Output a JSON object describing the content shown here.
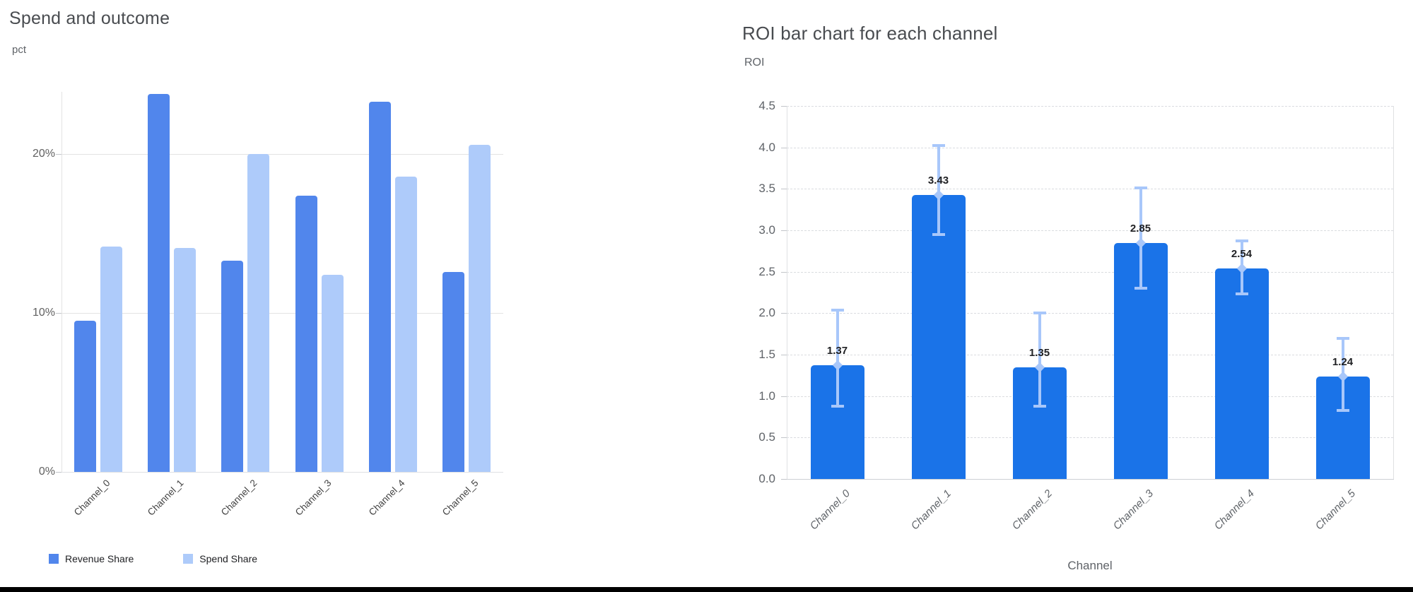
{
  "page": {
    "background": "#ffffff",
    "bottom_border_color": "#000000"
  },
  "chart_data": [
    {
      "type": "bar",
      "title": "Spend and outcome",
      "unit_label": "pct",
      "xlabel": "",
      "ylabel": "pct",
      "categories": [
        "Channel_0",
        "Channel_1",
        "Channel_2",
        "Channel_3",
        "Channel_4",
        "Channel_5"
      ],
      "series": [
        {
          "name": "Revenue Share",
          "color": "#5186EC",
          "values": [
            9.5,
            23.8,
            13.3,
            17.4,
            23.3,
            12.6
          ]
        },
        {
          "name": "Spend Share",
          "color": "#AECBFA",
          "values": [
            14.2,
            14.1,
            20.0,
            12.4,
            18.6,
            20.6
          ]
        }
      ],
      "y_ticks": [
        {
          "value": 0,
          "label": "0%"
        },
        {
          "value": 10,
          "label": "10%"
        },
        {
          "value": 20,
          "label": "20%"
        }
      ],
      "ylim": [
        0,
        23.93
      ],
      "grid": "solid",
      "legend_position": "bottom"
    },
    {
      "type": "bar",
      "title": "ROI bar chart for each channel",
      "unit_label": "ROI",
      "xlabel": "Channel",
      "ylabel": "ROI",
      "categories": [
        "Channel_0",
        "Channel_1",
        "Channel_2",
        "Channel_3",
        "Channel_4",
        "Channel_5"
      ],
      "series": [
        {
          "name": "ROI",
          "color": "#1A73E8",
          "values": [
            1.37,
            3.43,
            1.35,
            2.85,
            2.54,
            1.24
          ]
        }
      ],
      "value_labels": [
        "1.37",
        "3.43",
        "1.35",
        "2.85",
        "2.54",
        "1.24"
      ],
      "error_bars": {
        "color": "#A8C7FA",
        "low": [
          0.88,
          2.95,
          0.88,
          2.3,
          2.23,
          0.83
        ],
        "high": [
          2.04,
          4.02,
          2.0,
          3.51,
          2.87,
          1.7
        ]
      },
      "y_ticks": [
        {
          "value": 0.0,
          "label": "0.0"
        },
        {
          "value": 0.5,
          "label": "0.5"
        },
        {
          "value": 1.0,
          "label": "1.0"
        },
        {
          "value": 1.5,
          "label": "1.5"
        },
        {
          "value": 2.0,
          "label": "2.0"
        },
        {
          "value": 2.5,
          "label": "2.5"
        },
        {
          "value": 3.0,
          "label": "3.0"
        },
        {
          "value": 3.5,
          "label": "3.5"
        },
        {
          "value": 4.0,
          "label": "4.0"
        },
        {
          "value": 4.5,
          "label": "4.5"
        }
      ],
      "ylim": [
        0,
        4.5
      ],
      "grid": "dashed",
      "legend_position": "none"
    }
  ]
}
